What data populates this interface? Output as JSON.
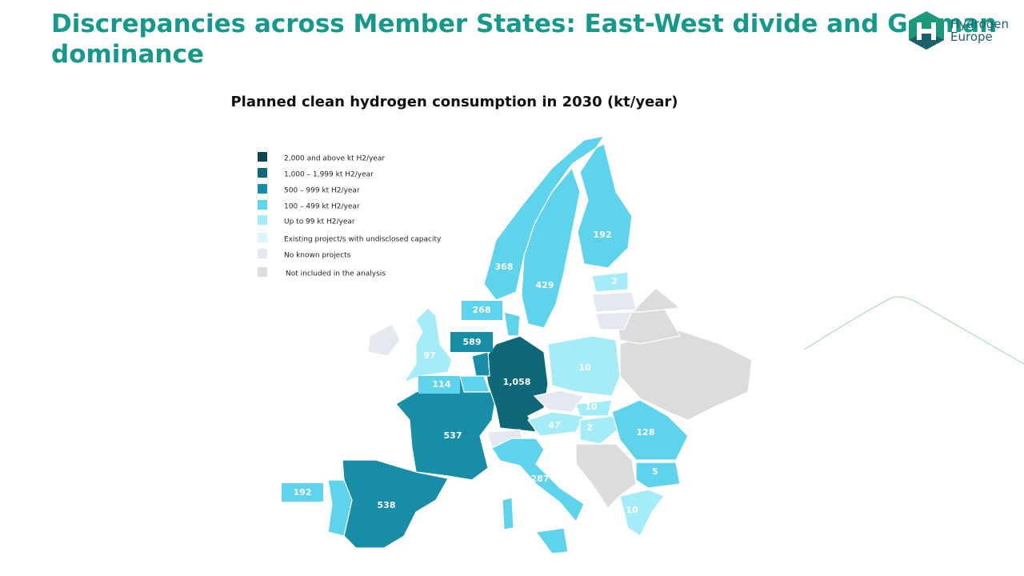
{
  "header": {
    "title": [
      "Discrepancies across Member States: East-West divide and German",
      "dominance"
    ],
    "logo": [
      "Hydrogen",
      "Europe"
    ]
  },
  "map": {
    "title": "Planned clean hydrogen consumption in 2030 (kt/year)",
    "legend": [
      "2,000 and above kt H2/year",
      "1,000 – 1,999 kt H2/year",
      "500 – 999 kt H2/year",
      "100 – 499 kt H2/year",
      "Up to 99 kt H2/year",
      "Existing project/s with undisclosed capacity",
      "No known projects",
      "Not included in the analysis"
    ],
    "labels": [
      "192",
      "368",
      "429",
      "2",
      "268",
      "589",
      "97",
      "1,058",
      "114",
      "10",
      "10",
      "47",
      "2",
      "128",
      "537",
      "5",
      "287",
      "192",
      "538",
      "10"
    ]
  }
}
